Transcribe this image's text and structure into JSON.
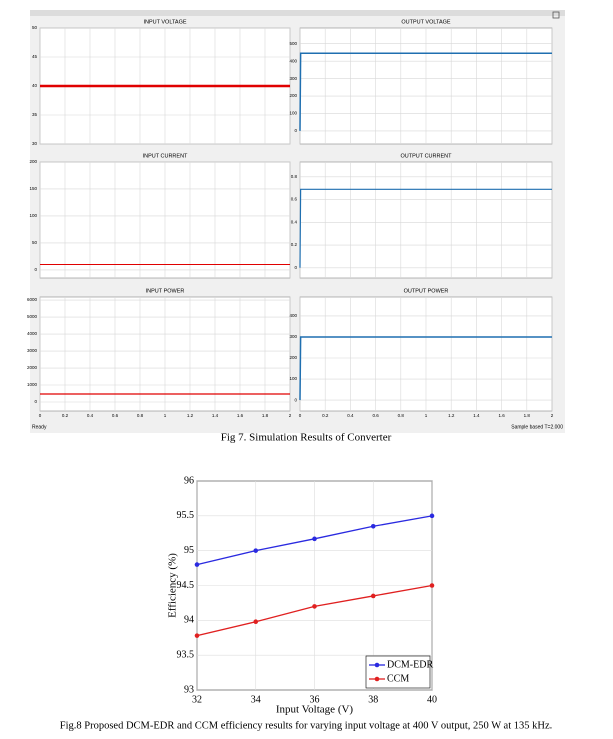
{
  "chart_data": [
    {
      "type": "line",
      "title": "INPUT VOLTAGE",
      "x": [
        0,
        2
      ],
      "series": [
        {
          "color": "#e00000",
          "line_width": 2.5,
          "values": [
            40,
            40
          ]
        }
      ],
      "xlim": [
        0,
        2
      ],
      "xticks": [
        0,
        0.2,
        0.4,
        0.6,
        0.8,
        1,
        1.2,
        1.4,
        1.6,
        1.8,
        2
      ],
      "xtick_labels": false,
      "ylim": [
        30,
        50
      ],
      "yticks": [
        30,
        35,
        40,
        45,
        50
      ],
      "grid": true
    },
    {
      "type": "line",
      "title": "OUTPUT VOLTAGE",
      "x": [
        0,
        0.005,
        2
      ],
      "series": [
        {
          "color": "#1f6fb0",
          "line_width": 1.5,
          "values": [
            0,
            445,
            445
          ]
        }
      ],
      "xlim": [
        0,
        2
      ],
      "xticks": [
        0,
        0.2,
        0.4,
        0.6,
        0.8,
        1,
        1.2,
        1.4,
        1.6,
        1.8,
        2
      ],
      "xtick_labels": false,
      "ylim": [
        -75,
        590
      ],
      "yticks": [
        0,
        100,
        200,
        300,
        400,
        500
      ],
      "grid": true
    },
    {
      "type": "line",
      "title": "INPUT CURRENT",
      "x": [
        0,
        2
      ],
      "series": [
        {
          "color": "#e00000",
          "line_width": 1,
          "values": [
            10,
            10
          ]
        }
      ],
      "xlim": [
        0,
        2
      ],
      "xticks": [
        0,
        0.2,
        0.4,
        0.6,
        0.8,
        1,
        1.2,
        1.4,
        1.6,
        1.8,
        2
      ],
      "xtick_labels": false,
      "ylim": [
        -15,
        200
      ],
      "yticks": [
        0,
        50,
        100,
        150,
        200
      ],
      "grid": true
    },
    {
      "type": "line",
      "title": "OUTPUT CURRENT",
      "x": [
        0,
        0.005,
        2
      ],
      "series": [
        {
          "color": "#1f6fb0",
          "line_width": 1.2,
          "values": [
            0,
            0.69,
            0.69
          ]
        }
      ],
      "xlim": [
        0,
        2
      ],
      "xticks": [
        0,
        0.2,
        0.4,
        0.6,
        0.8,
        1,
        1.2,
        1.4,
        1.6,
        1.8,
        2
      ],
      "xtick_labels": false,
      "ylim": [
        -0.09,
        0.93
      ],
      "yticks": [
        0,
        0.2,
        0.4,
        0.6,
        0.8
      ],
      "grid": true
    },
    {
      "type": "line",
      "title": "INPUT POWER",
      "x": [
        0,
        2
      ],
      "series": [
        {
          "color": "#e00000",
          "line_width": 1.2,
          "values": [
            470,
            470
          ]
        }
      ],
      "xlim": [
        0,
        2
      ],
      "xticks": [
        0,
        0.2,
        0.4,
        0.6,
        0.8,
        1,
        1.2,
        1.4,
        1.6,
        1.8,
        2
      ],
      "xtick_labels": true,
      "ylim": [
        -530,
        6180
      ],
      "yticks": [
        0,
        1000,
        2000,
        3000,
        4000,
        5000,
        6000
      ],
      "grid": true
    },
    {
      "type": "line",
      "title": "OUTPUT POWER",
      "x": [
        0,
        0.005,
        2
      ],
      "series": [
        {
          "color": "#1f6fb0",
          "line_width": 1.5,
          "values": [
            0,
            300,
            300
          ]
        }
      ],
      "xlim": [
        0,
        2
      ],
      "xticks": [
        0,
        0.2,
        0.4,
        0.6,
        0.8,
        1,
        1.2,
        1.4,
        1.6,
        1.8,
        2
      ],
      "xtick_labels": true,
      "ylim": [
        -52,
        490
      ],
      "yticks": [
        0,
        100,
        200,
        300,
        400
      ],
      "grid": true
    },
    {
      "type": "line",
      "x_label": "Input Voltage (V)",
      "y_label": "Efficiency (%)",
      "x": [
        32,
        34,
        36,
        38,
        40
      ],
      "series": [
        {
          "name": "DCM-EDR",
          "color": "#2a2ae0",
          "line_width": 1.3,
          "values": [
            94.8,
            95,
            95.17,
            95.35,
            95.5
          ]
        },
        {
          "name": "CCM",
          "color": "#e02020",
          "line_width": 1.3,
          "values": [
            93.78,
            93.98,
            94.2,
            94.35,
            94.5
          ]
        }
      ],
      "markers": true,
      "legend": "lower right",
      "xlim": [
        32,
        40
      ],
      "xticks": [
        32,
        34,
        36,
        38,
        40
      ],
      "xtick_labels": true,
      "ylim": [
        93,
        96
      ],
      "yticks": [
        93,
        93.5,
        94,
        94.5,
        95,
        95.5,
        96
      ],
      "grid": true
    }
  ],
  "status": {
    "left": "Ready",
    "right": "Sample based  T=2.000"
  },
  "captions": [
    "Fig 7. Simulation Results of Converter",
    "Fig.8 Proposed DCM-EDR and CCM efficiency results for varying input voltage at 400 V output, 250 W at 135 kHz."
  ]
}
